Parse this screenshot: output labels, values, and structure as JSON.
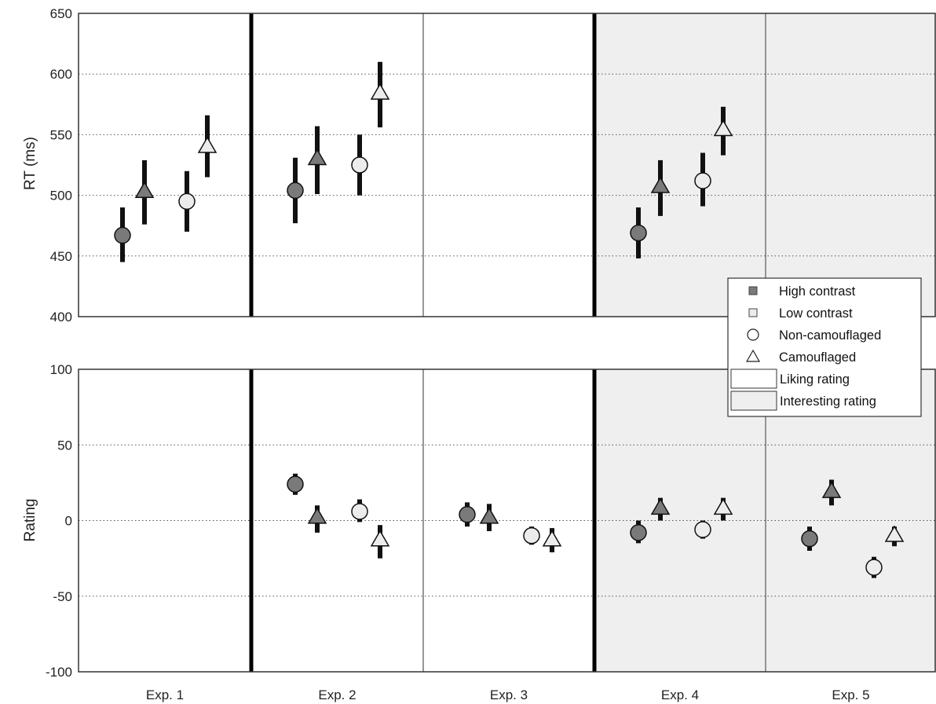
{
  "chart_data": [
    {
      "type": "scatter",
      "panel": "top",
      "ylabel": "RT (ms)",
      "ylim": [
        400,
        650
      ],
      "yticks": [
        400,
        450,
        500,
        550,
        600,
        650
      ],
      "grid": "horizontal dotted",
      "categories": [
        "Exp. 1",
        "Exp. 2",
        "Exp. 3",
        "Exp. 4",
        "Exp. 5"
      ],
      "series": [
        {
          "name": "High contrast / Non-camouflaged",
          "marker": "circle",
          "fill": "#7a7a7a",
          "points": [
            {
              "category": "Exp. 1",
              "y": 467,
              "low": 445,
              "high": 490
            },
            {
              "category": "Exp. 2",
              "y": 504,
              "low": 477,
              "high": 531
            },
            {
              "category": "Exp. 4",
              "y": 469,
              "low": 448,
              "high": 490
            }
          ]
        },
        {
          "name": "High contrast / Camouflaged",
          "marker": "triangle",
          "fill": "#7a7a7a",
          "points": [
            {
              "category": "Exp. 1",
              "y": 503,
              "low": 476,
              "high": 529
            },
            {
              "category": "Exp. 2",
              "y": 530,
              "low": 501,
              "high": 557
            },
            {
              "category": "Exp. 4",
              "y": 507,
              "low": 483,
              "high": 529
            }
          ]
        },
        {
          "name": "Low contrast / Non-camouflaged",
          "marker": "circle",
          "fill": "#ececec",
          "points": [
            {
              "category": "Exp. 1",
              "y": 495,
              "low": 470,
              "high": 520
            },
            {
              "category": "Exp. 2",
              "y": 525,
              "low": 500,
              "high": 550
            },
            {
              "category": "Exp. 4",
              "y": 512,
              "low": 491,
              "high": 535
            }
          ]
        },
        {
          "name": "Low contrast / Camouflaged",
          "marker": "triangle",
          "fill": "#ececec",
          "points": [
            {
              "category": "Exp. 1",
              "y": 540,
              "low": 515,
              "high": 566
            },
            {
              "category": "Exp. 2",
              "y": 584,
              "low": 556,
              "high": 610
            },
            {
              "category": "Exp. 4",
              "y": 554,
              "low": 533,
              "high": 573
            }
          ]
        }
      ]
    },
    {
      "type": "scatter",
      "panel": "bottom",
      "ylabel": "Rating",
      "ylim": [
        -100,
        100
      ],
      "yticks": [
        -100,
        -50,
        0,
        50,
        100
      ],
      "grid": "horizontal dotted",
      "categories": [
        "Exp. 1",
        "Exp. 2",
        "Exp. 3",
        "Exp. 4",
        "Exp. 5"
      ],
      "series": [
        {
          "name": "High contrast / Non-camouflaged",
          "marker": "circle",
          "fill": "#7a7a7a",
          "points": [
            {
              "category": "Exp. 2",
              "y": 24,
              "low": 17,
              "high": 31
            },
            {
              "category": "Exp. 3",
              "y": 4,
              "low": -4,
              "high": 12
            },
            {
              "category": "Exp. 4",
              "y": -8,
              "low": -15,
              "high": 0
            },
            {
              "category": "Exp. 5",
              "y": -12,
              "low": -20,
              "high": -4
            }
          ]
        },
        {
          "name": "High contrast / Camouflaged",
          "marker": "triangle",
          "fill": "#7a7a7a",
          "points": [
            {
              "category": "Exp. 2",
              "y": 2,
              "low": -8,
              "high": 10
            },
            {
              "category": "Exp. 3",
              "y": 2,
              "low": -7,
              "high": 11
            },
            {
              "category": "Exp. 4",
              "y": 8,
              "low": 0,
              "high": 15
            },
            {
              "category": "Exp. 5",
              "y": 19,
              "low": 10,
              "high": 27
            }
          ]
        },
        {
          "name": "Low contrast / Non-camouflaged",
          "marker": "circle",
          "fill": "#ececec",
          "points": [
            {
              "category": "Exp. 2",
              "y": 6,
              "low": -1,
              "high": 14
            },
            {
              "category": "Exp. 3",
              "y": -10,
              "low": -16,
              "high": -4
            },
            {
              "category": "Exp. 4",
              "y": -6,
              "low": -12,
              "high": 0
            },
            {
              "category": "Exp. 5",
              "y": -31,
              "low": -38,
              "high": -24
            }
          ]
        },
        {
          "name": "Low contrast / Camouflaged",
          "marker": "triangle",
          "fill": "#ececec",
          "points": [
            {
              "category": "Exp. 2",
              "y": -13,
              "low": -25,
              "high": -3
            },
            {
              "category": "Exp. 3",
              "y": -13,
              "low": -21,
              "high": -5
            },
            {
              "category": "Exp. 4",
              "y": 8,
              "low": 0,
              "high": 15
            },
            {
              "category": "Exp. 5",
              "y": -10,
              "low": -17,
              "high": -4
            }
          ]
        }
      ]
    }
  ],
  "legend": {
    "placement": "right, spanning both panels",
    "items": [
      {
        "label": "High contrast",
        "symbol": "square",
        "fill": "#7a7a7a"
      },
      {
        "label": "Low contrast",
        "symbol": "square",
        "fill": "#ececec"
      },
      {
        "label": "Non-camouflaged",
        "symbol": "circle",
        "fill": "#ffffff"
      },
      {
        "label": "Camouflaged",
        "symbol": "triangle",
        "fill": "#ffffff"
      },
      {
        "label": "Liking rating",
        "symbol": "rect",
        "fill": "#ffffff"
      },
      {
        "label": "Interesting rating",
        "symbol": "rect",
        "fill": "#efefef"
      }
    ]
  },
  "shading": {
    "interesting_categories": [
      "Exp. 4",
      "Exp. 5"
    ],
    "interesting_color": "#efefef"
  },
  "thick_dividers_before": [
    "Exp. 2",
    "Exp. 4"
  ],
  "colors": {
    "high_contrast": "#7a7a7a",
    "low_contrast": "#ececec",
    "errorbar": "#111111",
    "axis": "#333333"
  }
}
